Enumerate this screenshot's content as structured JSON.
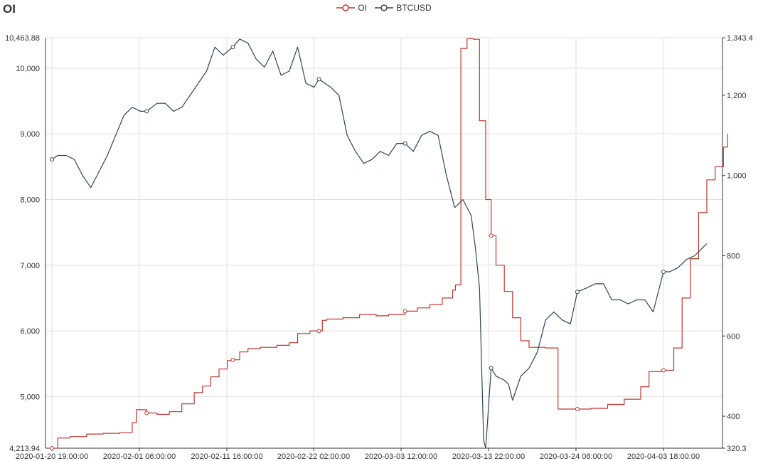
{
  "chart_data": {
    "type": "line",
    "title": "OI",
    "colors": {
      "OI": "#c23531",
      "BTCUSD": "#2f4554"
    },
    "legend": [
      "OI",
      "BTCUSD"
    ],
    "legend_placement": "top-center",
    "grid": true,
    "x_ticks": [
      "2020-01-20 19:00:00",
      "2020-02-01 06:00:00",
      "2020-02-11 16:00:00",
      "2020-02-22 02:00:00",
      "2020-03-03 12:00:00",
      "2020-03-13 22:00:00",
      "2020-03-24 08:00:00",
      "2020-04-03 18:00:00"
    ],
    "y_left": {
      "min": 4213.94,
      "max": 10463.88,
      "ticks": [
        "4,213.94",
        "5,000",
        "6,000",
        "7,000",
        "8,000",
        "9,000",
        "10,000",
        "10,463.88"
      ]
    },
    "y_right": {
      "min": 320.3,
      "max": 1343.4,
      "ticks": [
        "320.3",
        "400",
        "600",
        "800",
        "1,000",
        "1,200",
        "1,343.4"
      ]
    },
    "series": [
      {
        "name": "OI",
        "axis": "left",
        "x": [
          "2020-01-20 19:00",
          "2020-01-21 12:00",
          "2020-01-23 00:00",
          "2020-01-25 00:00",
          "2020-01-27 00:00",
          "2020-01-29 00:00",
          "2020-01-30 12:00",
          "2020-01-31 00:00",
          "2020-02-01 06:00",
          "2020-02-02 12:00",
          "2020-02-04 00:00",
          "2020-02-05 12:00",
          "2020-02-07 00:00",
          "2020-02-08 00:00",
          "2020-02-09 00:00",
          "2020-02-10 00:00",
          "2020-02-11 00:00",
          "2020-02-11 16:00",
          "2020-02-12 12:00",
          "2020-02-13 12:00",
          "2020-02-15 00:00",
          "2020-02-17 00:00",
          "2020-02-18 12:00",
          "2020-02-19 12:00",
          "2020-02-21 00:00",
          "2020-02-22 02:00",
          "2020-02-22 12:00",
          "2020-02-23 00:00",
          "2020-02-25 00:00",
          "2020-02-27 00:00",
          "2020-02-29 00:00",
          "2020-03-01 12:00",
          "2020-03-03 12:00",
          "2020-03-05 00:00",
          "2020-03-06 12:00",
          "2020-03-08 00:00",
          "2020-03-09 06:00",
          "2020-03-09 14:00",
          "2020-03-10 06:00",
          "2020-03-11 00:00",
          "2020-03-11 18:00",
          "2020-03-12 12:00",
          "2020-03-13 06:00",
          "2020-03-13 22:00",
          "2020-03-14 12:00",
          "2020-03-15 12:00",
          "2020-03-16 12:00",
          "2020-03-17 12:00",
          "2020-03-18 12:00",
          "2020-03-19 12:00",
          "2020-03-20 12:00",
          "2020-03-21 12:00",
          "2020-03-22 00:00",
          "2020-03-24 08:00",
          "2020-03-26 00:00",
          "2020-03-28 00:00",
          "2020-03-30 00:00",
          "2020-04-01 00:00",
          "2020-04-02 00:00",
          "2020-04-03 18:00",
          "2020-04-05 00:00",
          "2020-04-06 00:00",
          "2020-04-07 00:00",
          "2020-04-08 00:00",
          "2020-04-09 00:00",
          "2020-04-10 00:00",
          "2020-04-11 00:00",
          "2020-04-11 12:00"
        ],
        "values": [
          4213.94,
          4370,
          4390,
          4430,
          4440,
          4450,
          4600,
          4800,
          4750,
          4730,
          4770,
          4890,
          5060,
          5160,
          5300,
          5420,
          5550,
          5560,
          5680,
          5730,
          5750,
          5780,
          5820,
          5960,
          6000,
          6000,
          6160,
          6180,
          6200,
          6250,
          6230,
          6250,
          6300,
          6350,
          6400,
          6500,
          6620,
          6700,
          10300,
          10450,
          10440,
          9200,
          8000,
          7450,
          7000,
          6600,
          6200,
          5850,
          5750,
          5750,
          5740,
          5740,
          4810,
          4810,
          4820,
          4880,
          4960,
          5150,
          5380,
          5400,
          5740,
          6500,
          7100,
          7800,
          8300,
          8500,
          8800,
          9000
        ]
      },
      {
        "name": "BTCUSD",
        "axis": "right",
        "x": [
          "2020-01-20 19:00",
          "2020-01-21 12:00",
          "2020-01-22 12:00",
          "2020-01-23 12:00",
          "2020-01-24 12:00",
          "2020-01-25 12:00",
          "2020-01-26 12:00",
          "2020-01-27 12:00",
          "2020-01-28 12:00",
          "2020-01-29 12:00",
          "2020-01-30 12:00",
          "2020-01-31 12:00",
          "2020-02-01 06:00",
          "2020-02-02 12:00",
          "2020-02-03 12:00",
          "2020-02-04 12:00",
          "2020-02-05 12:00",
          "2020-02-06 12:00",
          "2020-02-07 12:00",
          "2020-02-08 12:00",
          "2020-02-09 12:00",
          "2020-02-10 12:00",
          "2020-02-11 16:00",
          "2020-02-12 12:00",
          "2020-02-13 12:00",
          "2020-02-14 12:00",
          "2020-02-15 12:00",
          "2020-02-16 12:00",
          "2020-02-17 12:00",
          "2020-02-18 12:00",
          "2020-02-19 12:00",
          "2020-02-20 12:00",
          "2020-02-21 12:00",
          "2020-02-22 02:00",
          "2020-02-23 12:00",
          "2020-02-24 12:00",
          "2020-02-25 12:00",
          "2020-02-26 12:00",
          "2020-02-27 12:00",
          "2020-02-28 12:00",
          "2020-02-29 12:00",
          "2020-03-01 12:00",
          "2020-03-02 12:00",
          "2020-03-03 12:00",
          "2020-03-04 12:00",
          "2020-03-05 12:00",
          "2020-03-06 12:00",
          "2020-03-07 12:00",
          "2020-03-08 12:00",
          "2020-03-09 12:00",
          "2020-03-10 12:00",
          "2020-03-11 12:00",
          "2020-03-12 00:00",
          "2020-03-12 12:00",
          "2020-03-13 00:00",
          "2020-03-13 06:00",
          "2020-03-13 22:00",
          "2020-03-14 12:00",
          "2020-03-15 12:00",
          "2020-03-16 00:00",
          "2020-03-16 12:00",
          "2020-03-17 12:00",
          "2020-03-18 12:00",
          "2020-03-19 12:00",
          "2020-03-20 12:00",
          "2020-03-21 12:00",
          "2020-03-22 12:00",
          "2020-03-23 12:00",
          "2020-03-24 08:00",
          "2020-03-25 12:00",
          "2020-03-26 12:00",
          "2020-03-27 12:00",
          "2020-03-28 12:00",
          "2020-03-29 12:00",
          "2020-03-30 12:00",
          "2020-03-31 12:00",
          "2020-04-01 12:00",
          "2020-04-02 12:00",
          "2020-04-03 18:00",
          "2020-04-04 12:00",
          "2020-04-05 12:00",
          "2020-04-06 12:00",
          "2020-04-07 12:00",
          "2020-04-08 12:00",
          "2020-04-09 00:00"
        ],
        "values": [
          1040,
          1050,
          1050,
          1040,
          1000,
          970,
          1010,
          1050,
          1100,
          1150,
          1170,
          1160,
          1160,
          1180,
          1180,
          1160,
          1170,
          1200,
          1230,
          1260,
          1320,
          1300,
          1320,
          1340,
          1330,
          1290,
          1270,
          1310,
          1250,
          1260,
          1320,
          1230,
          1220,
          1240,
          1220,
          1200,
          1100,
          1060,
          1030,
          1040,
          1060,
          1050,
          1080,
          1080,
          1060,
          1100,
          1110,
          1100,
          1000,
          920,
          940,
          900,
          820,
          720,
          340,
          320.3,
          520,
          500,
          490,
          480,
          440,
          500,
          520,
          560,
          640,
          660,
          640,
          630,
          710,
          720,
          730,
          730,
          690,
          690,
          680,
          690,
          690,
          660,
          760,
          760,
          770,
          790,
          800,
          820,
          830
        ]
      }
    ]
  }
}
